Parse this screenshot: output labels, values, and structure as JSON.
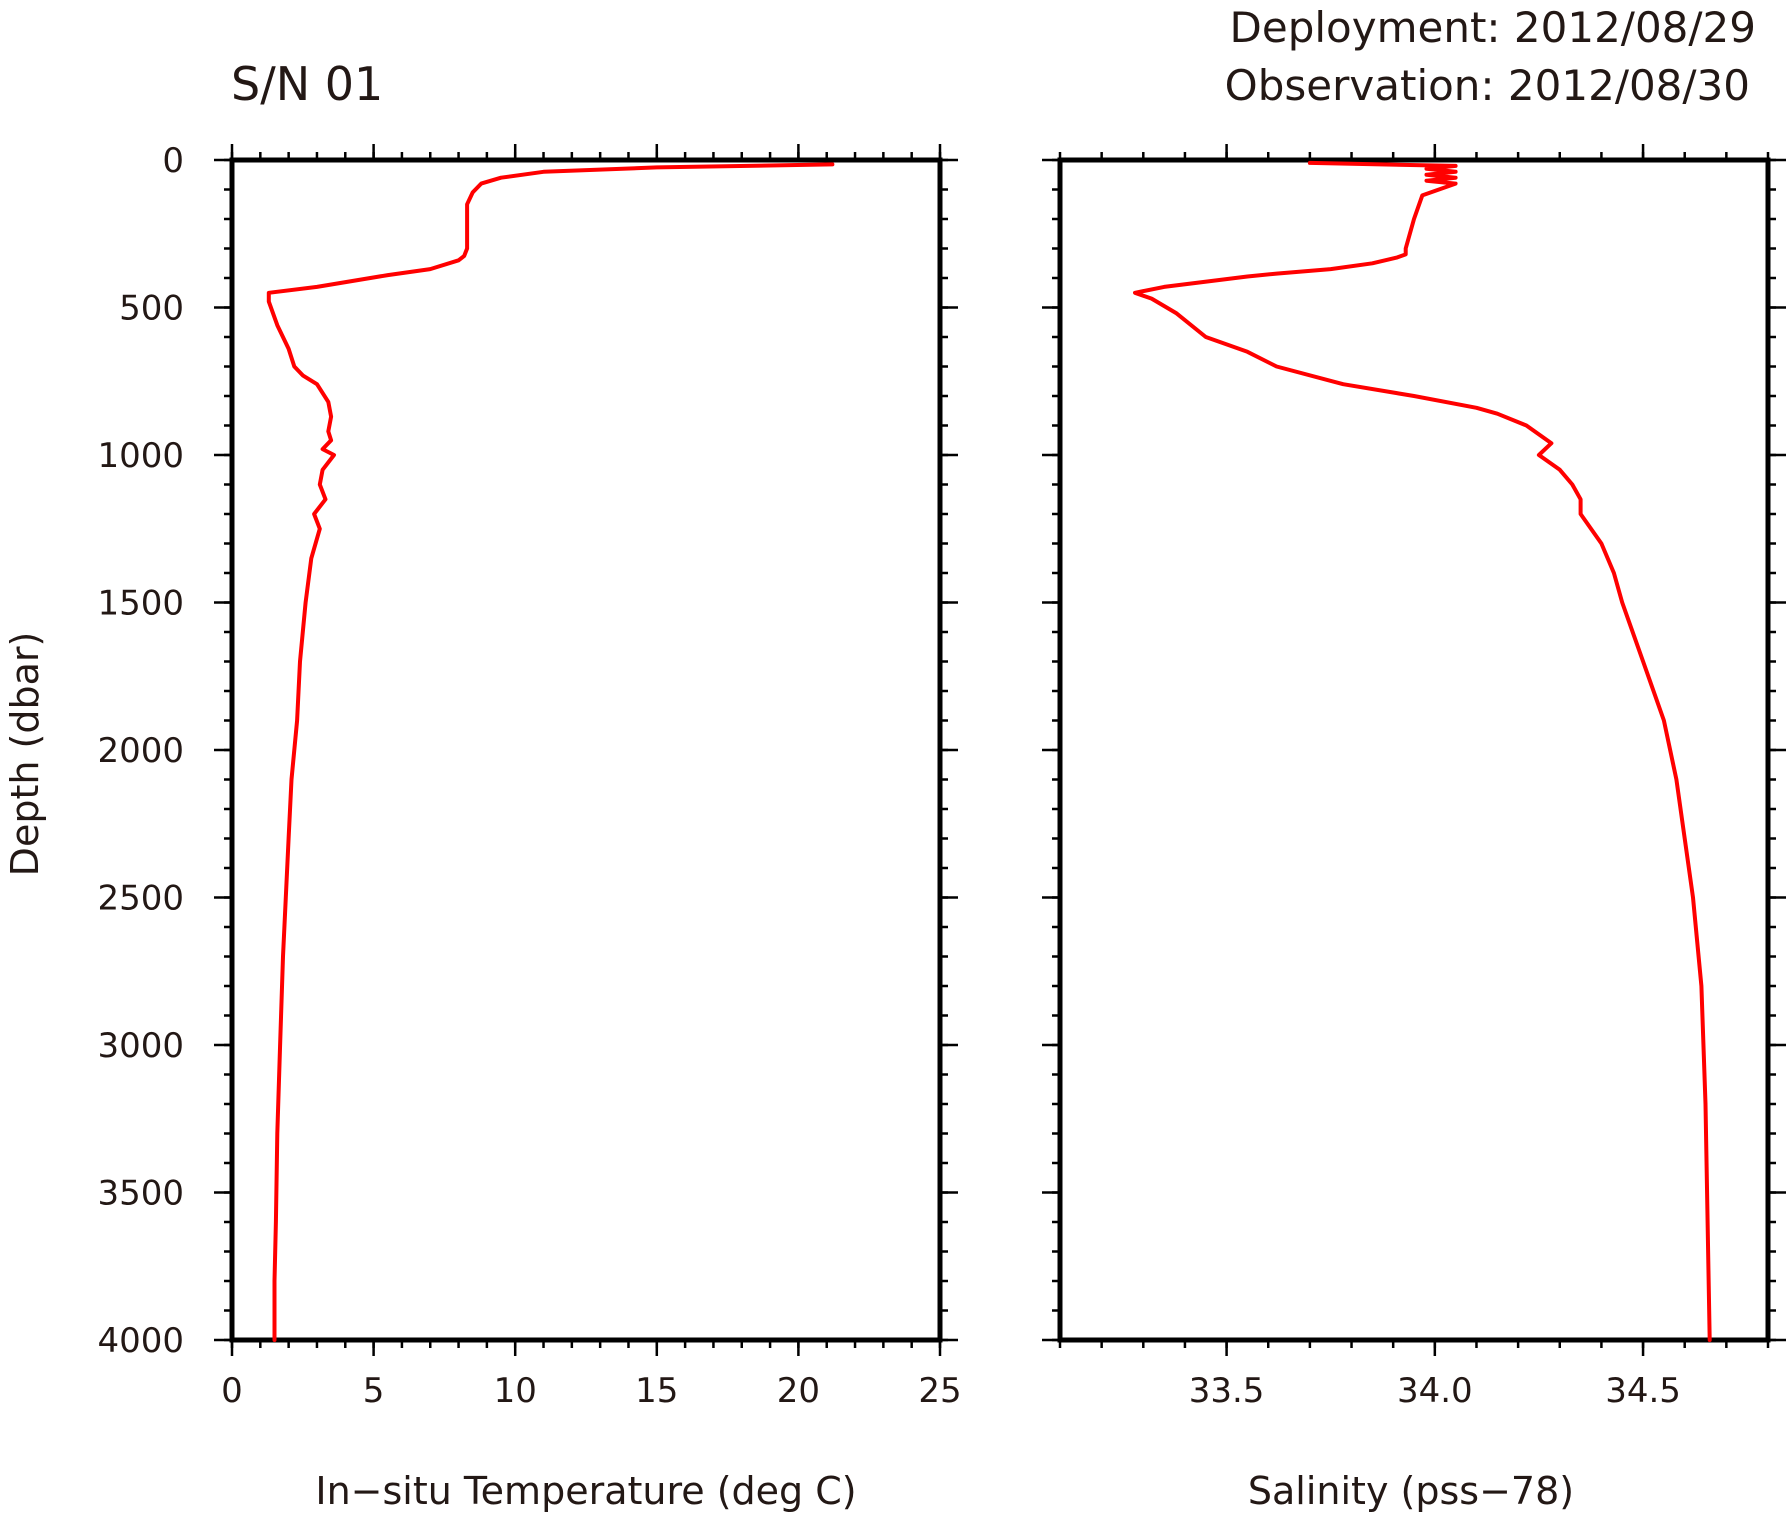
{
  "figure": {
    "title": "S/N 01",
    "deployment": "Deployment: 2012/08/29",
    "observation": "Observation: 2012/08/30"
  },
  "colors": {
    "line": "#ff0000",
    "axis": "#000000",
    "text": "#231815"
  },
  "chart_data": [
    {
      "type": "line",
      "title": "",
      "xlabel": "In−situ Temperature (deg C)",
      "ylabel": "Depth (dbar)",
      "xlim": [
        0,
        25
      ],
      "ylim": [
        4000,
        0
      ],
      "x_ticks": [
        0,
        5,
        10,
        15,
        20,
        25
      ],
      "x_tick_labels": [
        "0",
        "5",
        "10",
        "15",
        "20",
        "25"
      ],
      "x_minor_step": 1,
      "y_ticks": [
        0,
        500,
        1000,
        1500,
        2000,
        2500,
        3000,
        3500,
        4000
      ],
      "y_tick_labels": [
        "0",
        "500",
        "1000",
        "1500",
        "2000",
        "2500",
        "3000",
        "3500",
        "4000"
      ],
      "y_minor_step": 100,
      "grid": false,
      "series": [
        {
          "x": [
            21.2,
            15,
            11,
            9.5,
            8.8,
            8.5,
            8.3,
            8.3,
            8.3,
            8.2,
            8.0,
            7.0,
            5.5,
            3.0,
            1.3,
            1.3,
            1.6,
            2.0,
            2.2,
            2.5,
            3.0,
            3.4,
            3.5,
            3.4,
            3.5,
            3.2,
            3.6,
            3.2,
            3.1,
            3.3,
            2.9,
            3.1,
            2.8,
            2.6,
            2.4,
            2.3,
            2.1,
            2.0,
            1.9,
            1.8,
            1.7,
            1.6,
            1.55,
            1.5,
            1.5
          ],
          "y": [
            15,
            25,
            40,
            60,
            80,
            110,
            150,
            200,
            300,
            325,
            340,
            370,
            390,
            430,
            450,
            480,
            560,
            640,
            700,
            730,
            760,
            820,
            870,
            920,
            950,
            980,
            1000,
            1050,
            1100,
            1150,
            1200,
            1250,
            1350,
            1500,
            1700,
            1900,
            2100,
            2300,
            2500,
            2700,
            3000,
            3300,
            3600,
            3800,
            4000
          ]
        }
      ]
    },
    {
      "type": "line",
      "title": "",
      "xlabel": "Salinity (pss−78)",
      "ylabel": "",
      "xlim": [
        33.1,
        34.8
      ],
      "ylim": [
        4000,
        0
      ],
      "x_ticks": [
        33.5,
        34.0,
        34.5
      ],
      "x_tick_labels": [
        "33.5",
        "34.0",
        "34.5"
      ],
      "x_minor_step": 0.1,
      "y_ticks": [
        0,
        500,
        1000,
        1500,
        2000,
        2500,
        3000,
        3500,
        4000
      ],
      "y_tick_labels": [
        "0",
        "500",
        "1000",
        "1500",
        "2000",
        "2500",
        "3000",
        "3500",
        "4000"
      ],
      "y_minor_step": 100,
      "grid": false,
      "series": [
        {
          "x": [
            33.7,
            34.05,
            33.98,
            34.05,
            33.98,
            34.05,
            33.98,
            34.05,
            33.97,
            33.95,
            33.93,
            33.93,
            33.91,
            33.85,
            33.75,
            33.62,
            33.55,
            33.35,
            33.28,
            33.32,
            33.38,
            33.45,
            33.55,
            33.62,
            33.78,
            33.95,
            34.1,
            34.15,
            34.22,
            34.28,
            34.25,
            34.3,
            34.33,
            34.35,
            34.35,
            34.4,
            34.43,
            34.45,
            34.5,
            34.55,
            34.58,
            34.6,
            34.62,
            34.64,
            34.65,
            34.66
          ],
          "y": [
            10,
            20,
            30,
            40,
            50,
            60,
            70,
            80,
            120,
            200,
            300,
            320,
            330,
            350,
            370,
            385,
            395,
            430,
            450,
            470,
            520,
            600,
            650,
            700,
            760,
            800,
            840,
            860,
            900,
            960,
            1000,
            1050,
            1100,
            1150,
            1200,
            1300,
            1400,
            1500,
            1700,
            1900,
            2100,
            2300,
            2500,
            2800,
            3200,
            4000
          ]
        }
      ]
    }
  ]
}
